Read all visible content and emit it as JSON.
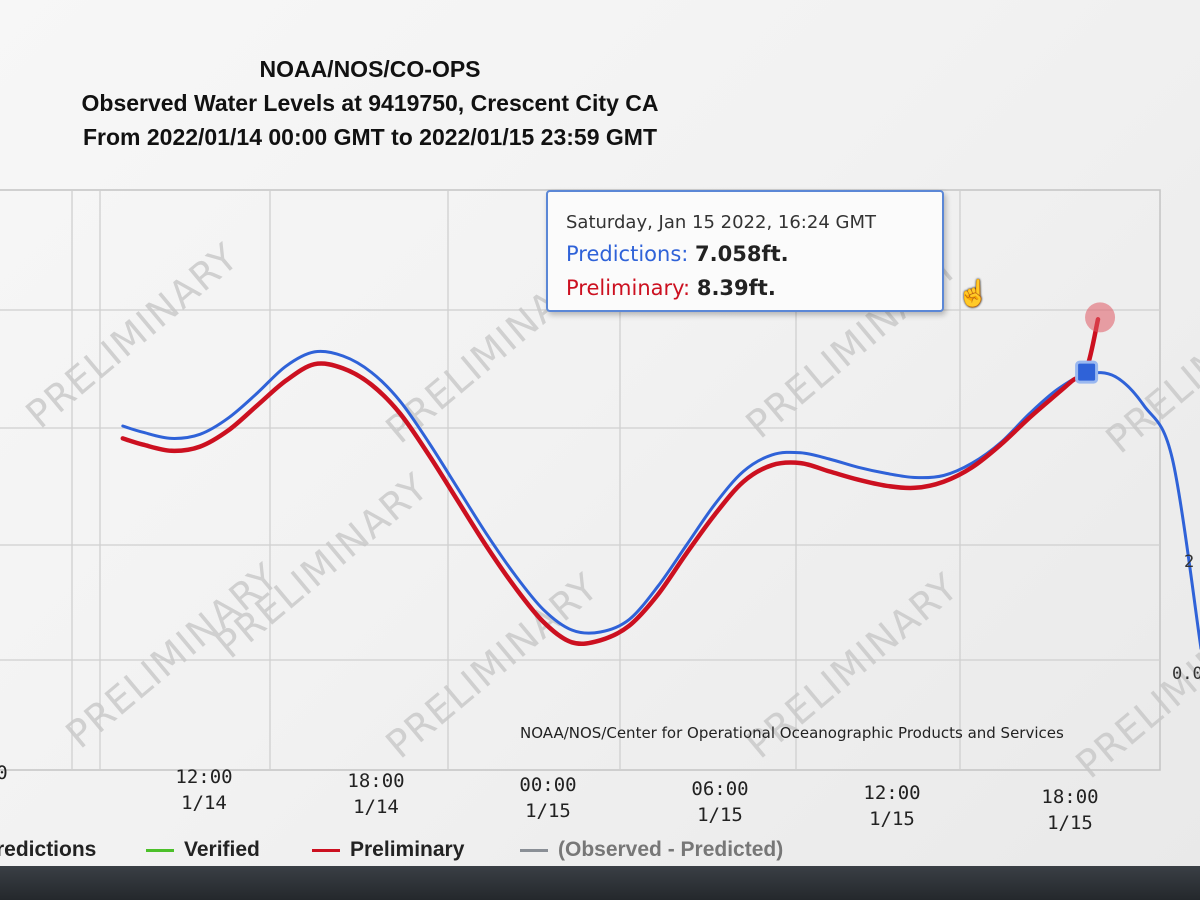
{
  "header": {
    "line1": "NOAA/NOS/CO-OPS",
    "line2": "Observed Water Levels at 9419750, Crescent City CA",
    "line3": "From 2022/01/14 00:00 GMT to 2022/01/15 23:59 GMT"
  },
  "watermark": "PRELIMINARY",
  "credit": "NOAA/NOS/Center for Operational Oceanographic Products and Services",
  "tooltip": {
    "date": "Saturday, Jan 15 2022, 16:24 GMT",
    "pred_label": "Predictions:",
    "pred_value": "7.058ft.",
    "prelim_label": "Preliminary:",
    "prelim_value": "8.39ft."
  },
  "x_ticks": [
    {
      "time": "0",
      "date": ""
    },
    {
      "time": "12:00",
      "date": "1/14"
    },
    {
      "time": "18:00",
      "date": "1/14"
    },
    {
      "time": "00:00",
      "date": "1/15"
    },
    {
      "time": "06:00",
      "date": "1/15"
    },
    {
      "time": "12:00",
      "date": "1/15"
    },
    {
      "time": "18:00",
      "date": "1/15"
    }
  ],
  "y_ticks": [
    "2",
    "0.0"
  ],
  "legend": {
    "predictions": "redictions",
    "verified": "Verified",
    "preliminary": "Preliminary",
    "difference": "(Observed - Predicted)"
  },
  "colors": {
    "predictions": "#2f62d8",
    "preliminary": "#cc1020",
    "verified": "#4cc02a",
    "difference": "#8a8f96"
  },
  "chart_data": {
    "type": "line",
    "x_unit": "hours from 2022/01/14 00:00 GMT",
    "y_unit": "ft",
    "ylim": [
      0,
      9.5
    ],
    "grid": true,
    "series": [
      {
        "name": "Predictions",
        "x": [
          7.3,
          8,
          9,
          10,
          11,
          12,
          13,
          14,
          15,
          16,
          17,
          18,
          19,
          20,
          21,
          22,
          23,
          24,
          25,
          26,
          27,
          28,
          29,
          30,
          31,
          32,
          33,
          34,
          35,
          36,
          37,
          38,
          39,
          40,
          41,
          42,
          43,
          44,
          45
        ],
        "y": [
          5.8,
          5.65,
          5.5,
          5.6,
          6.0,
          6.6,
          7.25,
          7.6,
          7.5,
          7.1,
          6.4,
          5.4,
          4.3,
          3.2,
          2.2,
          1.35,
          0.85,
          0.8,
          1.1,
          1.9,
          2.9,
          3.9,
          4.7,
          5.1,
          5.15,
          5.0,
          4.8,
          4.65,
          4.55,
          4.6,
          4.9,
          5.4,
          6.1,
          6.7,
          7.06,
          7.0,
          6.3,
          5.0,
          0.4
        ]
      },
      {
        "name": "Preliminary",
        "x": [
          7.3,
          8,
          9,
          10,
          11,
          12,
          13,
          14,
          15,
          16,
          17,
          18,
          19,
          20,
          21,
          22,
          23,
          24,
          25,
          26,
          27,
          28,
          29,
          30,
          31,
          32,
          33,
          34,
          35,
          36,
          37,
          38,
          39,
          40,
          40.5,
          41,
          41.4
        ],
        "y": [
          5.5,
          5.35,
          5.2,
          5.3,
          5.7,
          6.3,
          6.9,
          7.3,
          7.2,
          6.8,
          6.1,
          5.1,
          4.0,
          2.9,
          1.9,
          1.05,
          0.55,
          0.6,
          0.95,
          1.7,
          2.7,
          3.65,
          4.45,
          4.85,
          4.9,
          4.7,
          4.5,
          4.35,
          4.3,
          4.45,
          4.8,
          5.35,
          6.0,
          6.6,
          6.9,
          7.2,
          8.39
        ]
      }
    ]
  }
}
